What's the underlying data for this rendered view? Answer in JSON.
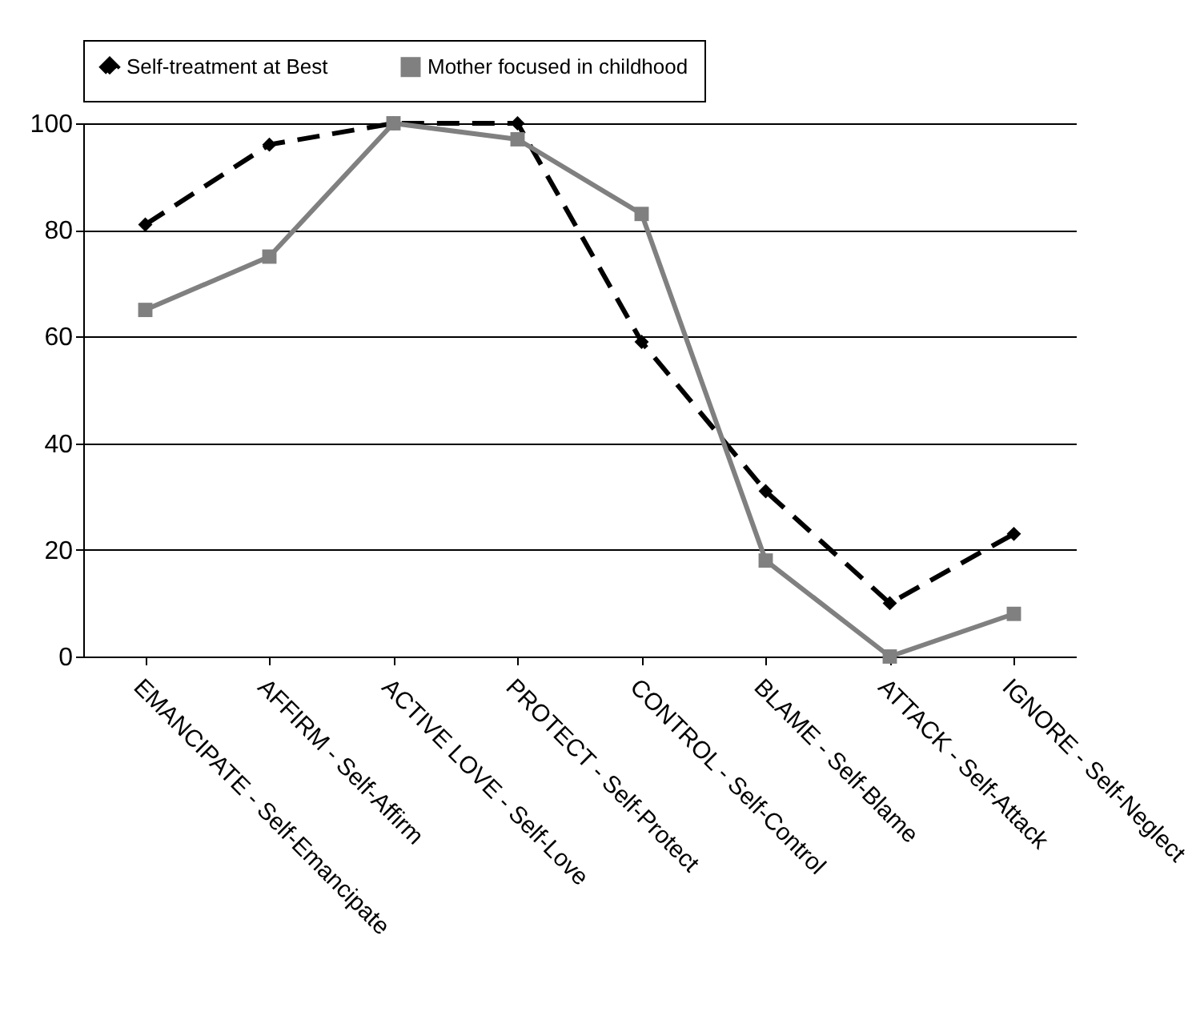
{
  "chart_data": {
    "type": "line",
    "categories": [
      "EMANCIPATE - Self-Emancipate",
      "AFFIRM - Self-Affirm",
      "ACTIVE LOVE - Self-Love",
      "PROTECT - Self-Protect",
      "CONTROL - Self-Control",
      "BLAME - Self-Blame",
      "ATTACK - Self-Attack",
      "IGNORE - Self-Neglect"
    ],
    "series": [
      {
        "name": "Self-treatment at Best",
        "color": "#000000",
        "marker": "diamond",
        "line_style": "dashed",
        "values": [
          81,
          96,
          100,
          100,
          59,
          31,
          10,
          23
        ]
      },
      {
        "name": "Mother focused in childhood",
        "color": "#808080",
        "marker": "square",
        "line_style": "solid",
        "values": [
          65,
          75,
          100,
          97,
          83,
          18,
          0,
          8
        ]
      }
    ],
    "ylim": [
      0,
      100
    ],
    "yticks": [
      0,
      20,
      40,
      60,
      80,
      100
    ],
    "grid": "y",
    "legend": "top"
  }
}
